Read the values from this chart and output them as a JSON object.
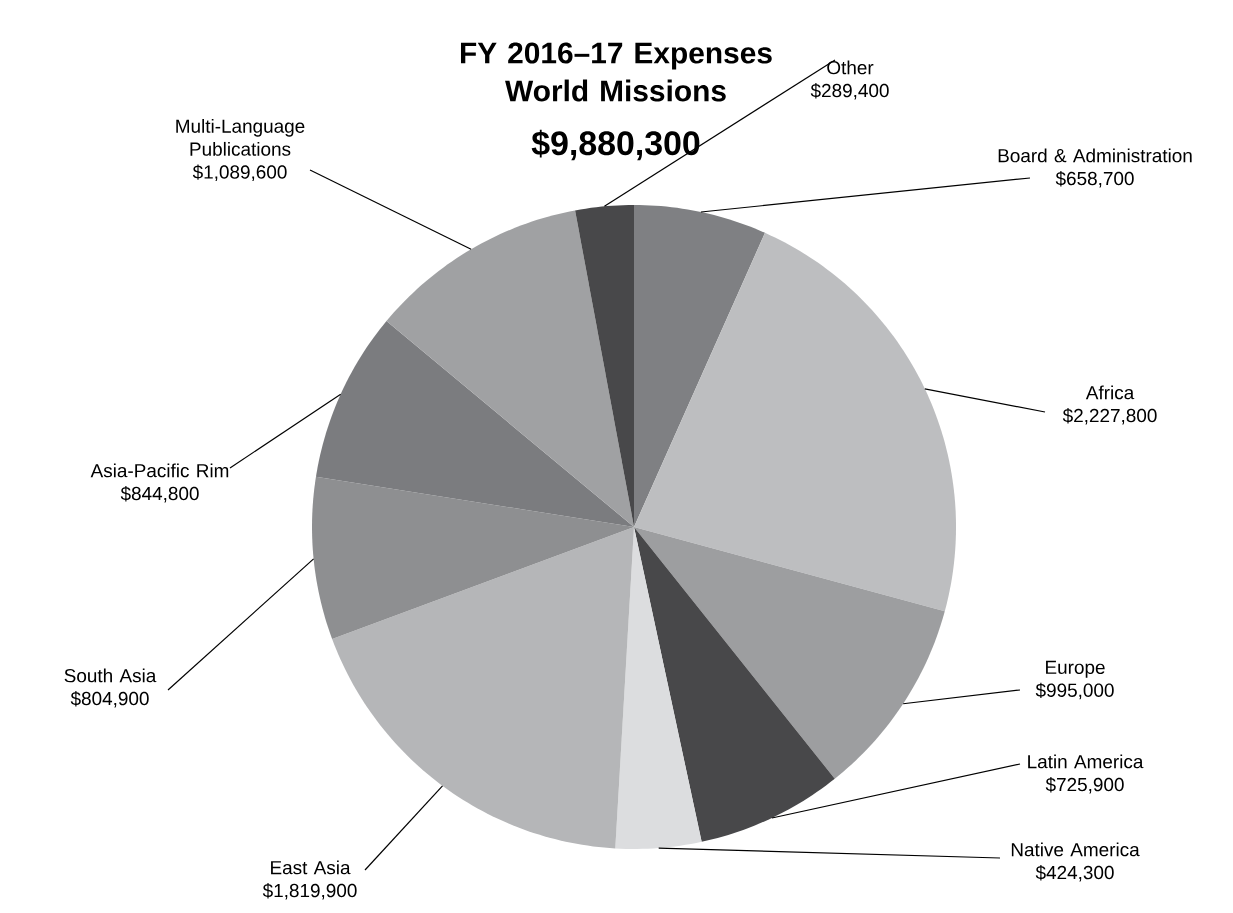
{
  "chart_data": {
    "type": "pie",
    "title": "FY 2016–17 Expenses World Missions",
    "subtitle": "$9,880,300",
    "categories": [
      "Board & Administration",
      "Africa",
      "Europe",
      "Latin America",
      "Native America",
      "East Asia",
      "South Asia",
      "Asia-Pacific Rim",
      "Multi-Language Publications",
      "Other"
    ],
    "values": [
      658700,
      2227800,
      995000,
      725900,
      424300,
      1819900,
      804900,
      844800,
      1089600,
      289400
    ],
    "value_labels": [
      "$658,700",
      "$2,227,800",
      "$995,000",
      "$725,900",
      "$424,300",
      "$1,819,900",
      "$804,900",
      "$844,800",
      "$1,089,600",
      "$289,400"
    ],
    "colors": [
      "#7f8083",
      "#bdbec0",
      "#9d9ea0",
      "#48484a",
      "#dcdddf",
      "#b5b6b8",
      "#8e8f91",
      "#7b7c7f",
      "#a0a1a3",
      "#48484a"
    ]
  }
}
